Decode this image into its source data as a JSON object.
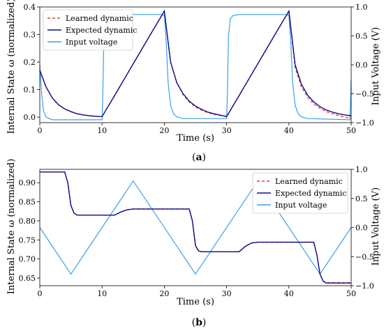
{
  "chart_data": [
    {
      "type": "line",
      "caption": "(a)",
      "xlabel": "Time (s)",
      "ylabel_left": "Internal State ω (normalized)",
      "ylabel_right": "Input Voltage (V)",
      "xlim": [
        0,
        50
      ],
      "ylim_left": [
        -0.02,
        0.4
      ],
      "ylim_right": [
        -1,
        1
      ],
      "xticks": [
        "0",
        "10",
        "20",
        "30",
        "40",
        "50"
      ],
      "yticks_left": [
        "0.0",
        "0.1",
        "0.2",
        "0.3",
        "0.4"
      ],
      "yticks_right": [
        "−1.0",
        "−0.5",
        "0.0",
        "0.5",
        "1.0"
      ],
      "legend_position": "top-left",
      "grid": false,
      "series": [
        {
          "name": "Learned dynamic",
          "axis": "left",
          "color": "#e8413d",
          "style": "dashed",
          "x": [
            0,
            1,
            2,
            3,
            4,
            5,
            6,
            7,
            8,
            9,
            10,
            12,
            14,
            16,
            18,
            20,
            21,
            22,
            23,
            24,
            25,
            26,
            27,
            28,
            29,
            30,
            32,
            34,
            36,
            38,
            40,
            41,
            42,
            43,
            44,
            45,
            46,
            47,
            48,
            49,
            50
          ],
          "y": [
            0.17,
            0.11,
            0.07,
            0.045,
            0.03,
            0.02,
            0.012,
            0.008,
            0.005,
            0.003,
            0.002,
            0.078,
            0.155,
            0.232,
            0.309,
            0.385,
            0.2,
            0.125,
            0.082,
            0.055,
            0.037,
            0.025,
            0.016,
            0.01,
            0.006,
            0.002,
            0.078,
            0.155,
            0.232,
            0.309,
            0.385,
            0.18,
            0.11,
            0.072,
            0.048,
            0.032,
            0.02,
            0.012,
            0.006,
            0.0,
            -0.005
          ]
        },
        {
          "name": "Expected dynamic",
          "axis": "left",
          "color": "#0b0b8c",
          "style": "solid",
          "x": [
            0,
            1,
            2,
            3,
            4,
            5,
            6,
            7,
            8,
            9,
            10,
            12,
            14,
            16,
            18,
            20,
            21,
            22,
            23,
            24,
            25,
            26,
            27,
            28,
            29,
            30,
            32,
            34,
            36,
            38,
            40,
            41,
            42,
            43,
            44,
            45,
            46,
            47,
            48,
            49,
            50
          ],
          "y": [
            0.17,
            0.11,
            0.07,
            0.045,
            0.03,
            0.02,
            0.012,
            0.008,
            0.005,
            0.003,
            0.002,
            0.078,
            0.155,
            0.232,
            0.309,
            0.385,
            0.2,
            0.125,
            0.085,
            0.058,
            0.04,
            0.028,
            0.018,
            0.012,
            0.007,
            0.002,
            0.078,
            0.155,
            0.232,
            0.309,
            0.385,
            0.19,
            0.12,
            0.08,
            0.055,
            0.038,
            0.026,
            0.018,
            0.012,
            0.008,
            0.005
          ]
        },
        {
          "name": "Input voltage",
          "axis": "right",
          "color": "#3aa1e8",
          "style": "solid",
          "x": [
            0,
            0.3,
            0.6,
            1,
            1.5,
            2,
            10,
            10.1,
            10.3,
            10.6,
            11,
            12,
            19.5,
            20,
            20.3,
            20.6,
            21,
            21.5,
            22,
            23,
            30,
            30.1,
            30.3,
            30.6,
            31,
            32,
            39.5,
            40,
            40.3,
            40.6,
            41,
            41.5,
            42,
            43,
            49.8,
            50
          ],
          "y": [
            0.0,
            -0.5,
            -0.8,
            -0.9,
            -0.93,
            -0.95,
            -0.95,
            -0.6,
            0.5,
            0.8,
            0.85,
            0.87,
            0.87,
            0.85,
            0.4,
            -0.3,
            -0.7,
            -0.85,
            -0.9,
            -0.93,
            -0.93,
            -0.6,
            0.5,
            0.8,
            0.85,
            0.87,
            0.87,
            0.85,
            0.4,
            -0.3,
            -0.7,
            -0.85,
            -0.9,
            -0.93,
            -0.95,
            -0.25
          ]
        }
      ]
    },
    {
      "type": "line",
      "caption": "(b)",
      "xlabel": "Time (s)",
      "ylabel_left": "Internal State ω (normalized)",
      "ylabel_right": "Input Voltage (V)",
      "xlim": [
        0,
        50
      ],
      "ylim_left": [
        0.63,
        0.935
      ],
      "ylim_right": [
        -1,
        1
      ],
      "xticks": [
        "0",
        "10",
        "20",
        "30",
        "40",
        "50"
      ],
      "yticks_left": [
        "0.65",
        "0.70",
        "0.75",
        "0.80",
        "0.85",
        "0.90"
      ],
      "yticks_right": [
        "−1.0",
        "−0.5",
        "0.0",
        "0.5",
        "1.0"
      ],
      "legend_position": "top-right",
      "grid": false,
      "series": [
        {
          "name": "Learned dynamic",
          "axis": "left",
          "color": "#e8413d",
          "style": "dashed",
          "x": [
            0,
            4,
            4.5,
            5,
            5.5,
            6,
            10,
            12,
            13,
            14,
            15,
            20,
            24,
            24.5,
            25,
            25.5,
            26,
            30,
            32,
            33,
            34,
            35,
            40,
            44,
            44.5,
            45,
            45.5,
            46,
            50
          ],
          "y": [
            0.928,
            0.928,
            0.9,
            0.84,
            0.82,
            0.815,
            0.815,
            0.815,
            0.823,
            0.829,
            0.831,
            0.831,
            0.831,
            0.8,
            0.735,
            0.721,
            0.719,
            0.719,
            0.719,
            0.733,
            0.742,
            0.744,
            0.744,
            0.744,
            0.71,
            0.66,
            0.642,
            0.638,
            0.638
          ]
        },
        {
          "name": "Expected dynamic",
          "axis": "left",
          "color": "#0b0b8c",
          "style": "solid",
          "x": [
            0,
            4,
            4.5,
            5,
            5.5,
            6,
            10,
            12,
            13,
            14,
            15,
            20,
            24,
            24.5,
            25,
            25.5,
            26,
            30,
            32,
            33,
            34,
            35,
            40,
            44,
            44.5,
            45,
            45.5,
            46,
            50
          ],
          "y": [
            0.928,
            0.928,
            0.9,
            0.84,
            0.82,
            0.815,
            0.815,
            0.815,
            0.823,
            0.829,
            0.831,
            0.831,
            0.831,
            0.8,
            0.735,
            0.721,
            0.719,
            0.719,
            0.719,
            0.733,
            0.742,
            0.744,
            0.744,
            0.744,
            0.71,
            0.66,
            0.642,
            0.637,
            0.637
          ]
        },
        {
          "name": "Input voltage",
          "axis": "right",
          "color": "#3aa1e8",
          "style": "solid",
          "x": [
            0,
            5,
            15,
            25,
            35,
            45,
            50
          ],
          "y": [
            0.0,
            -0.8,
            0.8,
            -0.8,
            0.8,
            -0.8,
            0.0
          ]
        }
      ]
    }
  ]
}
